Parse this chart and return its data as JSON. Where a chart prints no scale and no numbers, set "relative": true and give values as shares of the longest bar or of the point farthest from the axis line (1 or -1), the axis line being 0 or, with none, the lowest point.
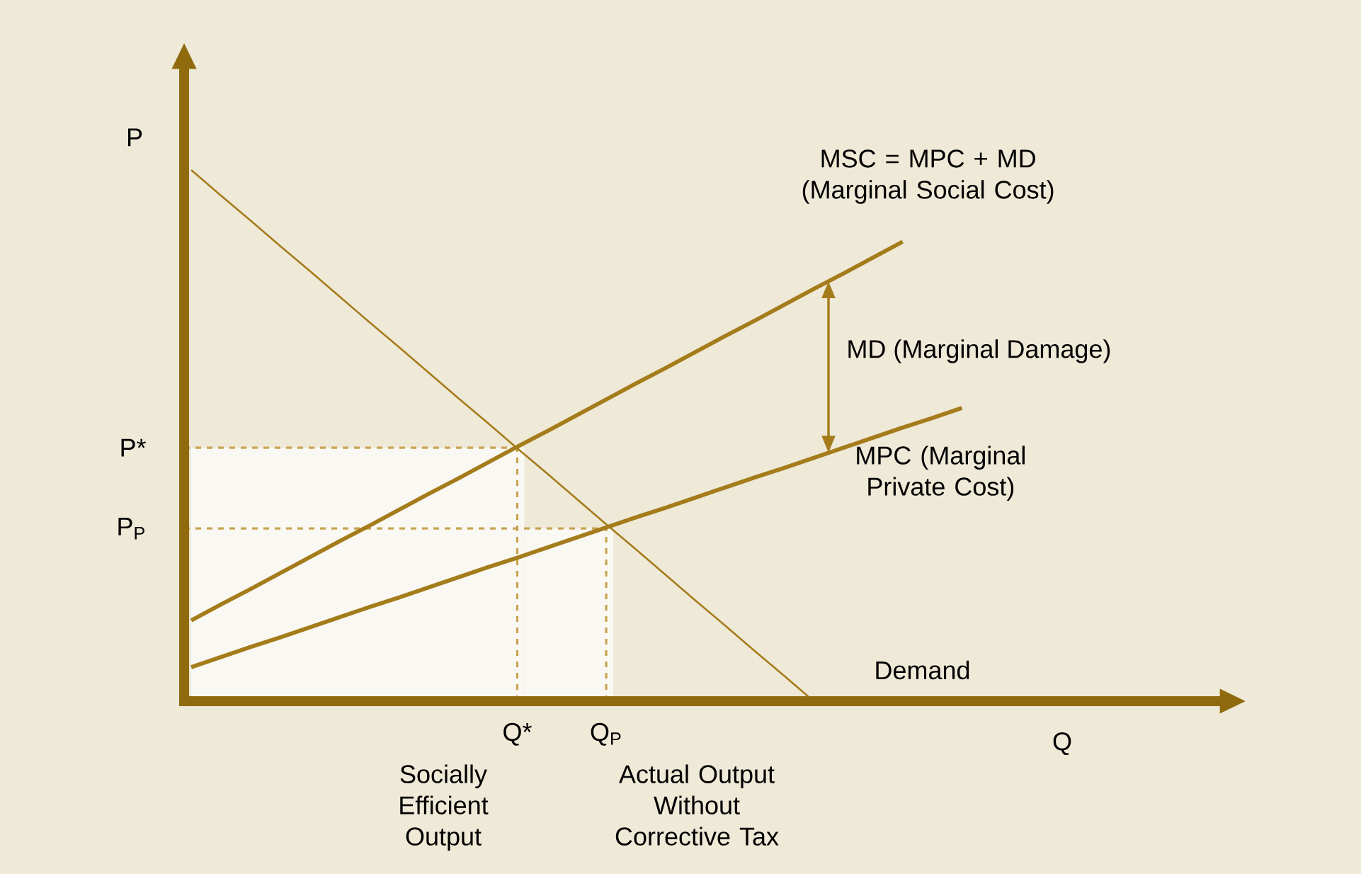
{
  "chart_data": {
    "type": "line",
    "relative": true,
    "xlabel": "Q",
    "ylabel": "P",
    "categories": [
      null,
      null,
      null,
      null,
      null,
      null,
      null,
      null,
      null,
      null,
      null,
      "Q*",
      null,
      null,
      "Q$_{P}$",
      null,
      null,
      null,
      null,
      null,
      null,
      null,
      null,
      null,
      null,
      null,
      null
    ],
    "series": [
      {
        "name": "Demand",
        "color": "#a57c1b",
        "values": [
          1,
          0.952,
          0.905,
          0.857,
          0.81,
          0.762,
          0.714,
          0.667,
          0.619,
          0.571,
          0.524,
          0.476,
          0.429,
          0.381,
          0.333,
          0.286,
          0.238,
          0.19,
          0.143,
          0.095,
          0.048,
          0,
          null,
          null,
          null,
          null,
          null
        ]
      },
      {
        "name": "MSC = MPC + MD (Marginal Social Cost)",
        "color": "#a57c1b",
        "values": [
          0.152,
          0.182,
          0.211,
          0.241,
          0.271,
          0.301,
          0.33,
          0.36,
          0.39,
          0.419,
          0.449,
          0.479,
          0.508,
          0.538,
          0.568,
          0.598,
          0.627,
          0.657,
          0.687,
          0.716,
          0.746,
          0.776,
          0.805,
          0.835,
          0.865,
          null,
          null
        ]
      },
      {
        "name": "MPC (Marginal Private Cost)",
        "color": "#a57c1b",
        "values": [
          0.064,
          0.083,
          0.102,
          0.12,
          0.139,
          0.158,
          0.177,
          0.195,
          0.214,
          0.233,
          0.252,
          0.27,
          0.289,
          0.308,
          0.327,
          0.346,
          0.364,
          0.383,
          0.402,
          0.421,
          0.439,
          0.458,
          0.477,
          0.496,
          0.515,
          0.533,
          0.552
        ]
      }
    ],
    "ref_lines": [
      {
        "axis": "y",
        "value": 0.477,
        "label": "P*",
        "color": "#c9a451",
        "line_style": "dashed"
      },
      {
        "axis": "y",
        "value": 0.325,
        "label": "P$_{P}$",
        "color": "#c9a451",
        "line_style": "dashed"
      },
      {
        "axis": "x",
        "value": "Q*",
        "color": "#c9a451",
        "line_style": "dashed"
      },
      {
        "axis": "x",
        "value": "Q$_{P}$",
        "color": "#c9a451",
        "line_style": "dashed"
      }
    ],
    "annotations": [
      "MD (Marginal Damage)",
      "Socially Efficient Output",
      "Actual Output Without Corrective Tax"
    ],
    "legend": false,
    "marker": "none",
    "line_style": "solid"
  }
}
